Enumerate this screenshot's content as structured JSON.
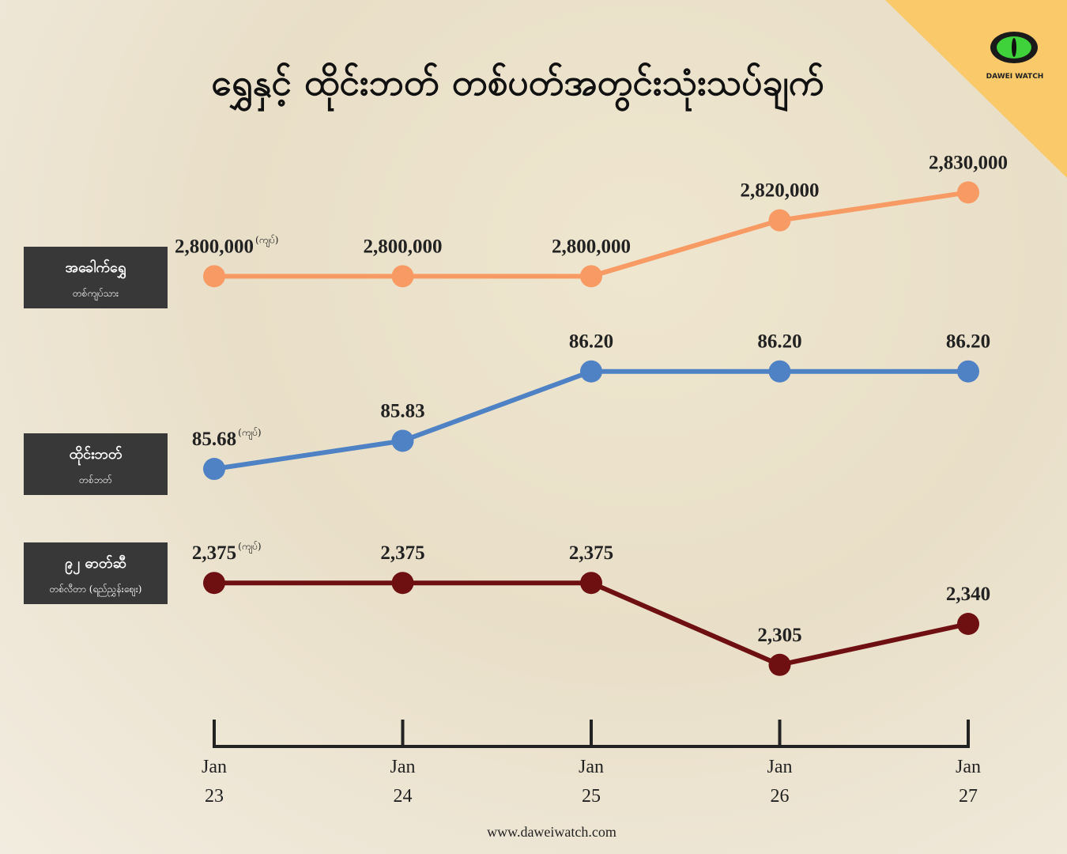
{
  "title": "ရွှေနှင့် ထိုင်းဘတ် တစ်ပတ်အတွင်းသုံးသပ်ချက်",
  "logo": "DAWEI WATCH",
  "footer": "www.daweiwatch.com",
  "categories": [
    "Jan 23",
    "Jan 24",
    "Jan 25",
    "Jan 26",
    "Jan 27"
  ],
  "chart_data": [
    {
      "type": "line",
      "label": "အခေါက်ရွှေ",
      "sublabel": "တစ်ကျပ်သား",
      "unit": "(ကျပ်)",
      "color": "#f79a63",
      "values": [
        2800000,
        2800000,
        2800000,
        2820000,
        2830000
      ],
      "value_labels": [
        "2,800,000",
        "2,800,000",
        "2,800,000",
        "2,820,000",
        "2,830,000"
      ],
      "ylim": [
        2780000,
        2840000
      ]
    },
    {
      "type": "line",
      "label": "ထိုင်းဘတ်",
      "sublabel": "တစ်ဘတ်",
      "unit": "(ကျပ်)",
      "color": "#4f82c4",
      "values": [
        85.68,
        85.83,
        86.2,
        86.2,
        86.2
      ],
      "value_labels": [
        "85.68",
        "85.83",
        "86.20",
        "86.20",
        "86.20"
      ],
      "ylim": [
        85.6,
        86.3
      ]
    },
    {
      "type": "line",
      "label": "၉၂ ဓာတ်ဆီ",
      "sublabel": "တစ်လီတာ (ရည်ညွှန်းဈေး)",
      "unit": "(ကျပ်)",
      "color": "#6e0f12",
      "values": [
        2375,
        2375,
        2375,
        2305,
        2340
      ],
      "value_labels": [
        "2,375",
        "2,375",
        "2,375",
        "2,305",
        "2,340"
      ],
      "ylim": [
        2290,
        2390
      ]
    }
  ]
}
